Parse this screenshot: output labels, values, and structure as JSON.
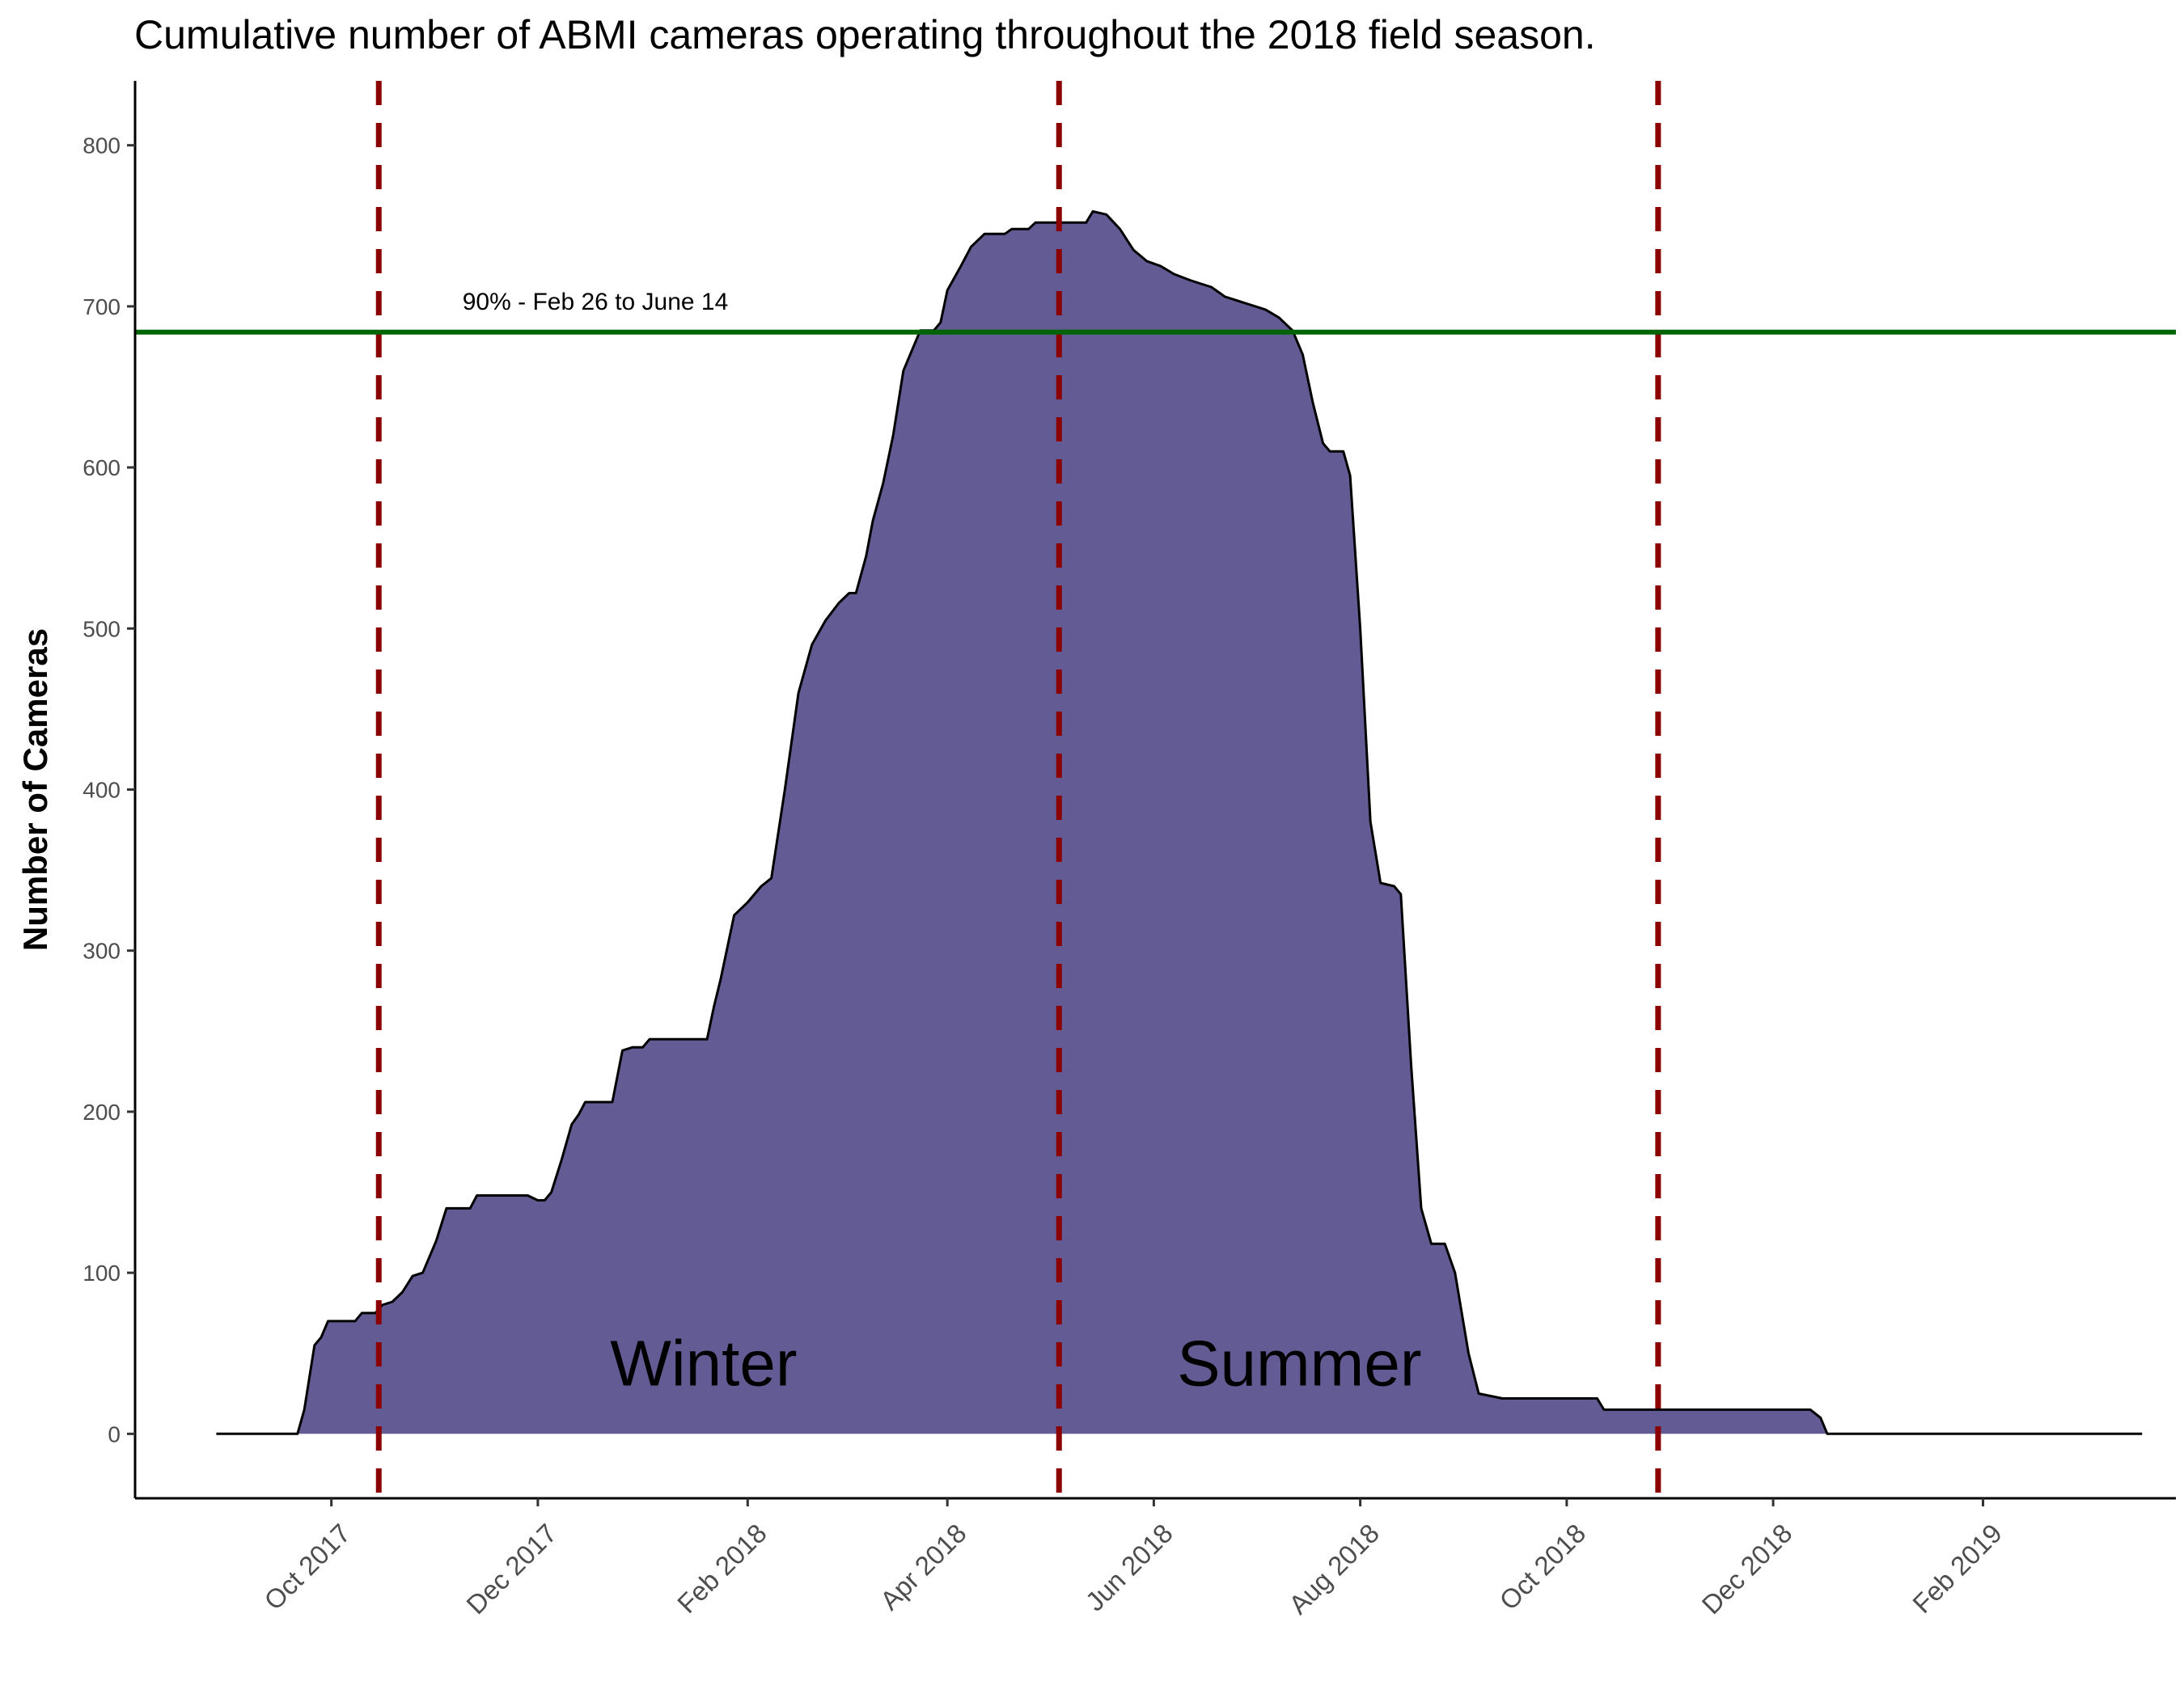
{
  "chart_data": {
    "type": "area",
    "title": "Cumulative number of ABMI cameras operating throughout the 2018 field season.",
    "ylabel": "Number of Cameras",
    "xlabel": "",
    "x_range": [
      "2017-08-04",
      "2019-03-30"
    ],
    "ylim": [
      -40,
      840
    ],
    "y_ticks": [
      0,
      100,
      200,
      300,
      400,
      500,
      600,
      700,
      800
    ],
    "x_ticks": [
      {
        "date": "2017-10-01",
        "label": "Oct 2017"
      },
      {
        "date": "2017-12-01",
        "label": "Dec 2017"
      },
      {
        "date": "2018-02-01",
        "label": "Feb 2018"
      },
      {
        "date": "2018-04-01",
        "label": "Apr 2018"
      },
      {
        "date": "2018-06-01",
        "label": "Jun 2018"
      },
      {
        "date": "2018-08-01",
        "label": "Aug 2018"
      },
      {
        "date": "2018-10-01",
        "label": "Oct 2018"
      },
      {
        "date": "2018-12-01",
        "label": "Dec 2018"
      },
      {
        "date": "2019-02-01",
        "label": "Feb 2019"
      }
    ],
    "grid": false,
    "fill_color": "#625b94",
    "series": [
      {
        "points": [
          [
            "2017-08-28",
            0
          ],
          [
            "2017-09-21",
            0
          ],
          [
            "2017-09-23",
            15
          ],
          [
            "2017-09-26",
            55
          ],
          [
            "2017-09-28",
            60
          ],
          [
            "2017-09-30",
            70
          ],
          [
            "2017-10-08",
            70
          ],
          [
            "2017-10-10",
            75
          ],
          [
            "2017-10-14",
            75
          ],
          [
            "2017-10-16",
            80
          ],
          [
            "2017-10-19",
            82
          ],
          [
            "2017-10-22",
            88
          ],
          [
            "2017-10-25",
            98
          ],
          [
            "2017-10-28",
            100
          ],
          [
            "2017-11-01",
            120
          ],
          [
            "2017-11-04",
            140
          ],
          [
            "2017-11-11",
            140
          ],
          [
            "2017-11-13",
            148
          ],
          [
            "2017-11-28",
            148
          ],
          [
            "2017-12-01",
            145
          ],
          [
            "2017-12-03",
            145
          ],
          [
            "2017-12-05",
            150
          ],
          [
            "2017-12-08",
            170
          ],
          [
            "2017-12-11",
            192
          ],
          [
            "2017-12-13",
            198
          ],
          [
            "2017-12-15",
            206
          ],
          [
            "2017-12-23",
            206
          ],
          [
            "2017-12-26",
            238
          ],
          [
            "2017-12-29",
            240
          ],
          [
            "2018-01-01",
            240
          ],
          [
            "2018-01-03",
            245
          ],
          [
            "2018-01-20",
            245
          ],
          [
            "2018-01-22",
            265
          ],
          [
            "2018-01-24",
            282
          ],
          [
            "2018-01-28",
            322
          ],
          [
            "2018-02-01",
            330
          ],
          [
            "2018-02-05",
            340
          ],
          [
            "2018-02-08",
            345
          ],
          [
            "2018-02-12",
            400
          ],
          [
            "2018-02-16",
            460
          ],
          [
            "2018-02-20",
            490
          ],
          [
            "2018-02-24",
            505
          ],
          [
            "2018-02-28",
            516
          ],
          [
            "2018-03-03",
            522
          ],
          [
            "2018-03-05",
            522
          ],
          [
            "2018-03-08",
            545
          ],
          [
            "2018-03-10",
            567
          ],
          [
            "2018-03-13",
            590
          ],
          [
            "2018-03-16",
            620
          ],
          [
            "2018-03-19",
            660
          ],
          [
            "2018-03-22",
            675
          ],
          [
            "2018-03-24",
            685
          ],
          [
            "2018-03-28",
            685
          ],
          [
            "2018-03-30",
            690
          ],
          [
            "2018-04-01",
            710
          ],
          [
            "2018-04-05",
            725
          ],
          [
            "2018-04-08",
            737
          ],
          [
            "2018-04-12",
            745
          ],
          [
            "2018-04-18",
            745
          ],
          [
            "2018-04-20",
            748
          ],
          [
            "2018-04-25",
            748
          ],
          [
            "2018-04-27",
            752
          ],
          [
            "2018-05-12",
            752
          ],
          [
            "2018-05-14",
            759
          ],
          [
            "2018-05-18",
            757
          ],
          [
            "2018-05-22",
            748
          ],
          [
            "2018-05-26",
            735
          ],
          [
            "2018-05-30",
            728
          ],
          [
            "2018-06-03",
            725
          ],
          [
            "2018-06-07",
            720
          ],
          [
            "2018-06-12",
            716
          ],
          [
            "2018-06-18",
            712
          ],
          [
            "2018-06-22",
            706
          ],
          [
            "2018-06-28",
            702
          ],
          [
            "2018-07-04",
            698
          ],
          [
            "2018-07-08",
            693
          ],
          [
            "2018-07-12",
            685
          ],
          [
            "2018-07-15",
            670
          ],
          [
            "2018-07-18",
            640
          ],
          [
            "2018-07-21",
            615
          ],
          [
            "2018-07-23",
            610
          ],
          [
            "2018-07-27",
            610
          ],
          [
            "2018-07-29",
            595
          ],
          [
            "2018-08-01",
            500
          ],
          [
            "2018-08-04",
            380
          ],
          [
            "2018-08-07",
            342
          ],
          [
            "2018-08-11",
            340
          ],
          [
            "2018-08-13",
            335
          ],
          [
            "2018-08-16",
            230
          ],
          [
            "2018-08-19",
            140
          ],
          [
            "2018-08-22",
            118
          ],
          [
            "2018-08-26",
            118
          ],
          [
            "2018-08-29",
            100
          ],
          [
            "2018-09-02",
            50
          ],
          [
            "2018-09-05",
            25
          ],
          [
            "2018-09-12",
            22
          ],
          [
            "2018-10-10",
            22
          ],
          [
            "2018-10-12",
            15
          ],
          [
            "2018-12-12",
            15
          ],
          [
            "2018-12-15",
            10
          ],
          [
            "2018-12-17",
            0
          ],
          [
            "2019-03-20",
            0
          ]
        ]
      }
    ],
    "reference_lines": [
      {
        "orientation": "vertical",
        "x": "2017-10-15",
        "color": "#8b0000",
        "style": "dashed"
      },
      {
        "orientation": "vertical",
        "x": "2018-05-04",
        "color": "#8b0000",
        "style": "dashed"
      },
      {
        "orientation": "vertical",
        "x": "2018-10-28",
        "color": "#8b0000",
        "style": "dashed"
      },
      {
        "orientation": "horizontal",
        "y": 684,
        "color": "#006400",
        "style": "solid"
      }
    ],
    "annotations": [
      {
        "text": "90% - Feb 26 to June 14",
        "x": "2017-12-18",
        "y": 698
      },
      {
        "text": "Winter",
        "x": "2018-01-19",
        "y": 30
      },
      {
        "text": "Summer",
        "x": "2018-07-14",
        "y": 30
      }
    ]
  }
}
